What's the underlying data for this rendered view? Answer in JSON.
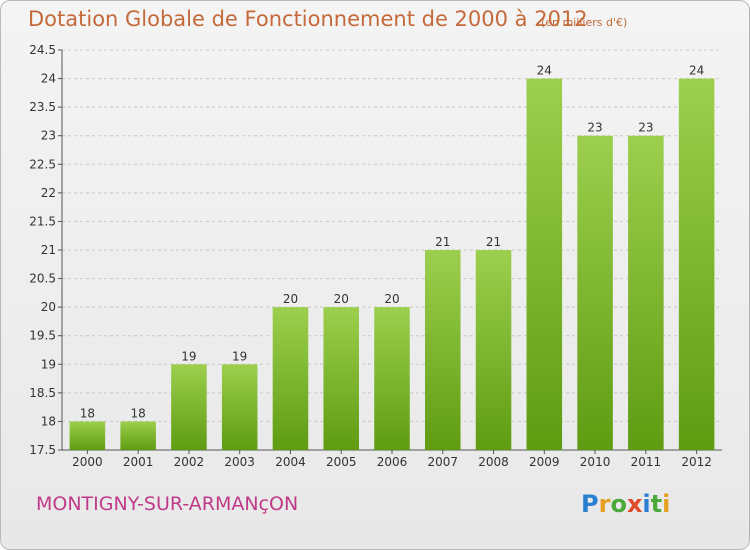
{
  "title": "Dotation Globale de Fonctionnement de 2000 à 2012",
  "subtitle": "(en milliers d'€)",
  "commune": "MONTIGNY-SUR-ARMANçON",
  "logo": [
    "P",
    "r",
    "o",
    "x",
    "i",
    "t",
    "i"
  ],
  "chart_data": {
    "type": "bar",
    "title": "Dotation Globale de Fonctionnement de 2000 à 2012",
    "subtitle": "(en milliers d'€)",
    "xlabel": "",
    "ylabel": "",
    "categories": [
      "2000",
      "2001",
      "2002",
      "2003",
      "2004",
      "2005",
      "2006",
      "2007",
      "2008",
      "2009",
      "2010",
      "2011",
      "2012"
    ],
    "values": [
      18,
      18,
      19,
      19,
      20,
      20,
      20,
      21,
      21,
      24,
      23,
      23,
      24
    ],
    "data_labels": [
      "18",
      "18",
      "19",
      "19",
      "20",
      "20",
      "20",
      "21",
      "21",
      "24",
      "23",
      "23",
      "24"
    ],
    "ylim": [
      17.5,
      24.5
    ],
    "yticks": [
      17.5,
      18,
      18.5,
      19,
      19.5,
      20,
      20.5,
      21,
      21.5,
      22,
      22.5,
      23,
      23.5,
      24,
      24.5
    ],
    "ytick_labels": [
      "17.5",
      "18",
      "18.5",
      "19",
      "19.5",
      "20",
      "20.5",
      "21",
      "21.5",
      "22",
      "22.5",
      "23",
      "23.5",
      "24",
      "24.5"
    ],
    "grid": true,
    "colors": {
      "bar_top": "#9ccf4e",
      "bar_bottom": "#5f9c12",
      "grid": "#c8c8c8",
      "axis": "#555555"
    }
  }
}
